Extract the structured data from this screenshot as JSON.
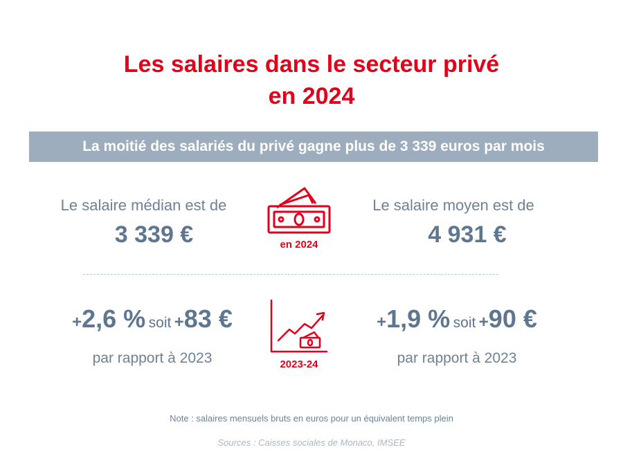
{
  "title_line1": "Les salaires dans le secteur privé",
  "title_line2": "en 2024",
  "banner": "La moitié des salariés du privé gagne plus de 3 339 euros par mois",
  "median": {
    "label": "Le salaire médian est de",
    "value": "3 339 €"
  },
  "mean": {
    "label": "Le salaire moyen est de",
    "value": "4 931 €"
  },
  "money_icon_caption": "en 2024",
  "growth_median": {
    "sign1": "+",
    "pct": "2,6 %",
    "soit": "soit",
    "sign2": "+",
    "amount": "83 €",
    "sub": "par rapport à 2023"
  },
  "growth_mean": {
    "sign1": "+",
    "pct": "1,9 %",
    "soit": "soit",
    "sign2": "+",
    "amount": "90 €",
    "sub": "par rapport à 2023"
  },
  "trend_icon_caption": "2023-24",
  "note": "Note : salaires mensuels bruts en euros pour un équivalent temps plein",
  "sources": "Sources : Caisses sociales de Monaco, IMSEE",
  "colors": {
    "accent": "#e3001b",
    "banner": "#9dadbd",
    "value": "#5f7690",
    "text": "#6d8197"
  }
}
